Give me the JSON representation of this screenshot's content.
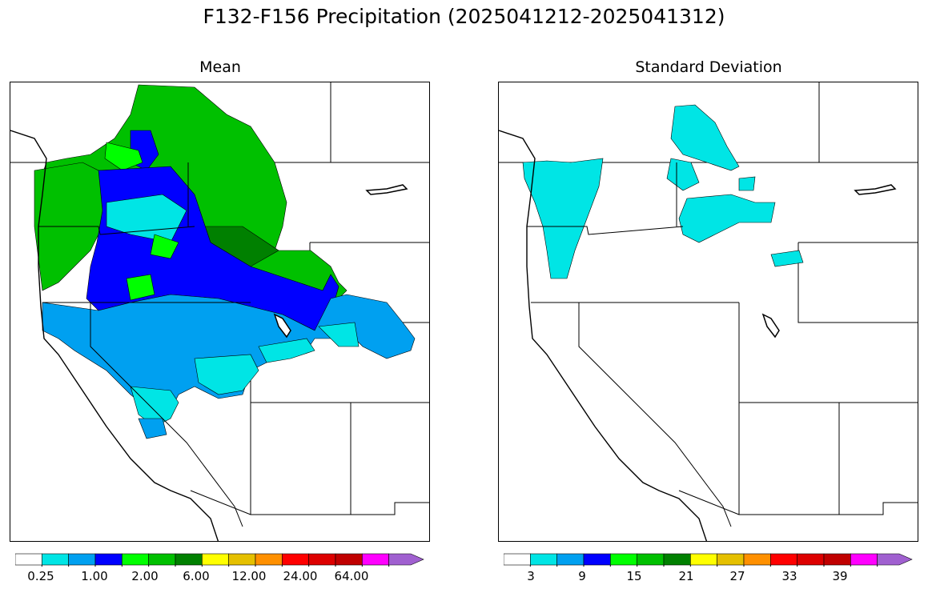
{
  "title": "F132-F156 Precipitation (2025041212-2025041312)",
  "panels": [
    {
      "id": "mean",
      "title": "Mean",
      "colorbar": {
        "colors": [
          "#ffffff",
          "#00e5e5",
          "#00a0f0",
          "#0000ff",
          "#00ff00",
          "#00c000",
          "#008000",
          "#ffff00",
          "#e5c000",
          "#ff9000",
          "#ff0000",
          "#dd0000",
          "#c00000",
          "#ff00ff",
          "#a060d0"
        ],
        "tick_labels": [
          "0.25",
          "1.00",
          "2.00",
          "6.00",
          "12.00",
          "24.00",
          "64.00"
        ],
        "extend": "max"
      }
    },
    {
      "id": "stddev",
      "title": "Standard Deviation",
      "colorbar": {
        "colors": [
          "#ffffff",
          "#00e5e5",
          "#00a0f0",
          "#0000ff",
          "#00ff00",
          "#00c000",
          "#008000",
          "#ffff00",
          "#e5c000",
          "#ff9000",
          "#ff0000",
          "#dd0000",
          "#c00000",
          "#ff00ff",
          "#a060d0"
        ],
        "tick_labels": [
          "3",
          "9",
          "15",
          "21",
          "27",
          "33",
          "39"
        ],
        "extend": "max"
      }
    }
  ]
}
